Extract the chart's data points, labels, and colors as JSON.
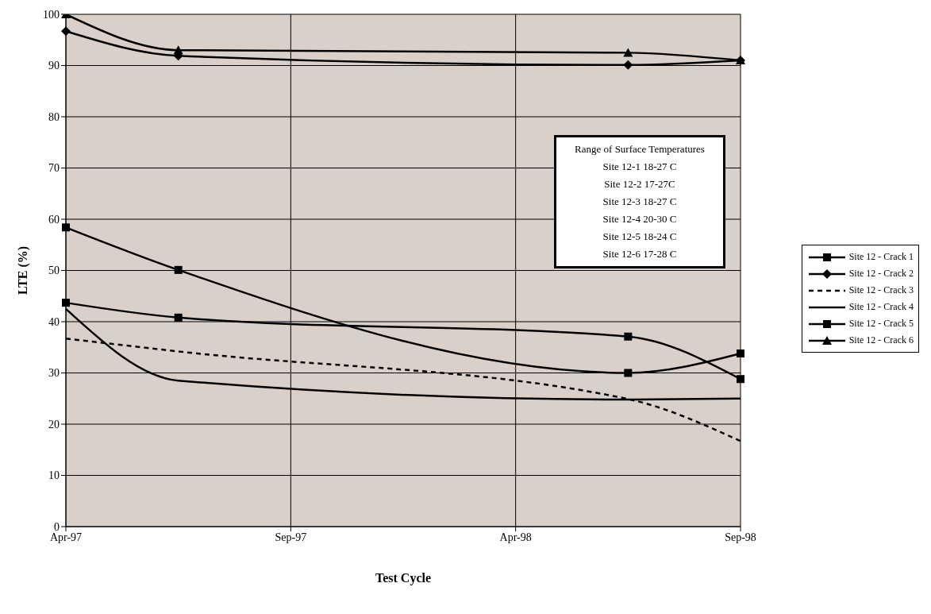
{
  "chart_data": {
    "type": "line",
    "xlabel": "Test Cycle",
    "ylabel": "LTE (%)",
    "categories": [
      "Apr-97",
      null,
      "Sep-97",
      null,
      "Apr-98",
      null,
      "Sep-98"
    ],
    "series": [
      {
        "name": "Site 12 - Crack 1",
        "color": "#000000",
        "marker": "square",
        "values": [
          43.7,
          40.8,
          null,
          null,
          null,
          37.1,
          28.8
        ]
      },
      {
        "name": "Site 12 - Crack 2",
        "color": "#000000",
        "marker": "diamond",
        "values": [
          96.7,
          91.9,
          null,
          null,
          null,
          90.1,
          91.0
        ]
      },
      {
        "name": "Site 12 - Crack 3",
        "color": "#000000",
        "line_style": "dashed",
        "values": [
          36.7,
          34.2,
          null,
          null,
          null,
          24.9,
          16.7
        ]
      },
      {
        "name": "Site 12 - Crack 4",
        "color": "#000000",
        "values": [
          42.5,
          28.5,
          null,
          null,
          null,
          24.8,
          25.0
        ]
      },
      {
        "name": "Site 12 - Crack 5",
        "color": "#000000",
        "marker": "square",
        "values": [
          58.4,
          50.1,
          null,
          null,
          null,
          30.0,
          33.8
        ]
      },
      {
        "name": "Site 12 - Crack 6",
        "color": "#000000",
        "marker": "triangle",
        "values": [
          100,
          93.0,
          null,
          null,
          null,
          92.5,
          91.0
        ]
      }
    ],
    "ylim": [
      0,
      100
    ],
    "yticks": [
      0,
      10,
      20,
      30,
      40,
      50,
      60,
      70,
      80,
      90,
      100
    ],
    "grid": true,
    "legend": "right",
    "annotations": [
      "Range of Surface Temperatures",
      "Site 12-1 18-27 C",
      "Site 12-2 17-27C",
      "Site 12-3 18-27 C",
      "Site 12-4 20-30 C",
      "Site 12-5 18-24 C",
      "Site 12-6 17-28 C"
    ]
  }
}
